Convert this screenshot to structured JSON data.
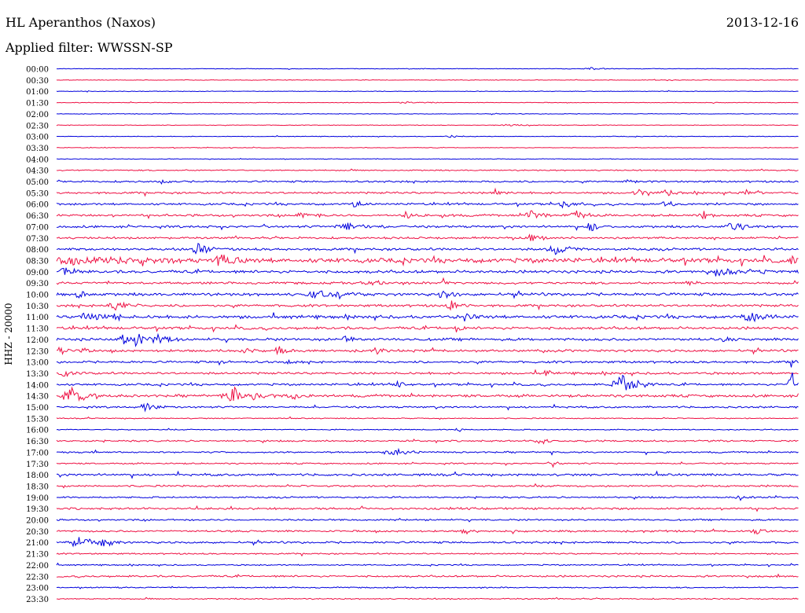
{
  "header": {
    "station": "HL Aperanthos (Naxos)",
    "filter": "Applied filter: WWSSN-SP",
    "date": "2013-12-16"
  },
  "chart_data": {
    "type": "line",
    "title": "HL Aperanthos (Naxos)",
    "subtitle": "Applied filter: WWSSN-SP",
    "ylabel": "HHZ - 20000",
    "rows": [
      "00:00",
      "00:30",
      "01:00",
      "01:30",
      "02:00",
      "02:30",
      "03:00",
      "03:30",
      "04:00",
      "04:30",
      "05:00",
      "05:30",
      "06:00",
      "06:30",
      "07:00",
      "07:30",
      "08:00",
      "08:30",
      "09:00",
      "09:30",
      "10:00",
      "10:30",
      "11:00",
      "11:30",
      "12:00",
      "12:30",
      "13:00",
      "13:30",
      "14:00",
      "14:30",
      "15:00",
      "15:30",
      "16:00",
      "16:30",
      "17:00",
      "17:30",
      "18:00",
      "18:30",
      "19:00",
      "19:30",
      "20:00",
      "20:30",
      "21:00",
      "21:30",
      "22:00",
      "22:30",
      "23:00",
      "23:30"
    ],
    "series_colors": [
      "#0000dd",
      "#ee1144"
    ],
    "noise_level": [
      0.3,
      0.3,
      0.3,
      0.3,
      0.3,
      0.3,
      0.3,
      0.3,
      0.3,
      0.6,
      0.9,
      1.0,
      1.0,
      1.1,
      1.1,
      1.0,
      1.2,
      2.2,
      1.4,
      1.1,
      1.4,
      1.2,
      1.5,
      1.3,
      1.3,
      1.2,
      1.1,
      1.1,
      1.0,
      1.3,
      0.9,
      0.5,
      0.5,
      0.8,
      0.8,
      0.7,
      1.1,
      0.9,
      0.8,
      1.0,
      0.8,
      0.9,
      1.0,
      0.7,
      0.6,
      0.9,
      0.6,
      0.6
    ],
    "events": [
      {
        "row": 0,
        "t": 0.72,
        "amp": 1.5,
        "dur": 0.03
      },
      {
        "row": 3,
        "t": 0.47,
        "amp": 1.2,
        "dur": 0.05
      },
      {
        "row": 5,
        "t": 0.61,
        "amp": 1.2,
        "dur": 0.04
      },
      {
        "row": 6,
        "t": 0.53,
        "amp": 1.5,
        "dur": 0.03
      },
      {
        "row": 10,
        "t": 0.14,
        "amp": 2.0,
        "dur": 0.02
      },
      {
        "row": 10,
        "t": 0.77,
        "amp": 2.0,
        "dur": 0.02
      },
      {
        "row": 11,
        "t": 0.59,
        "amp": 5.0,
        "dur": 0.015
      },
      {
        "row": 11,
        "t": 0.78,
        "amp": 6.0,
        "dur": 0.015
      },
      {
        "row": 11,
        "t": 0.82,
        "amp": 5.0,
        "dur": 0.015
      },
      {
        "row": 11,
        "t": 0.93,
        "amp": 4.5,
        "dur": 0.015
      },
      {
        "row": 12,
        "t": 0.4,
        "amp": 5.0,
        "dur": 0.02
      },
      {
        "row": 12,
        "t": 0.68,
        "amp": 5.0,
        "dur": 0.03
      },
      {
        "row": 12,
        "t": 0.82,
        "amp": 4.0,
        "dur": 0.02
      },
      {
        "row": 13,
        "t": 0.33,
        "amp": 5.0,
        "dur": 0.025
      },
      {
        "row": 13,
        "t": 0.47,
        "amp": 6.0,
        "dur": 0.015
      },
      {
        "row": 13,
        "t": 0.52,
        "amp": 4.0,
        "dur": 0.015
      },
      {
        "row": 13,
        "t": 0.64,
        "amp": 5.0,
        "dur": 0.03
      },
      {
        "row": 13,
        "t": 0.7,
        "amp": 7.0,
        "dur": 0.025
      },
      {
        "row": 13,
        "t": 0.87,
        "amp": 6.0,
        "dur": 0.02
      },
      {
        "row": 14,
        "t": 0.39,
        "amp": 8.0,
        "dur": 0.04
      },
      {
        "row": 14,
        "t": 0.72,
        "amp": 5.0,
        "dur": 0.02
      },
      {
        "row": 14,
        "t": 0.91,
        "amp": 6.0,
        "dur": 0.03
      },
      {
        "row": 15,
        "t": 0.64,
        "amp": 6.0,
        "dur": 0.025
      },
      {
        "row": 16,
        "t": 0.19,
        "amp": 7.0,
        "dur": 0.03
      },
      {
        "row": 16,
        "t": 0.67,
        "amp": 8.0,
        "dur": 0.03
      },
      {
        "row": 17,
        "t": 0.03,
        "amp": 4.0,
        "dur": 0.12
      },
      {
        "row": 17,
        "t": 0.22,
        "amp": 7.0,
        "dur": 0.03
      },
      {
        "row": 17,
        "t": 0.99,
        "amp": 7.0,
        "dur": 0.01
      },
      {
        "row": 18,
        "t": 0.01,
        "amp": 5.0,
        "dur": 0.02
      },
      {
        "row": 18,
        "t": 0.9,
        "amp": 6.0,
        "dur": 0.05
      },
      {
        "row": 19,
        "t": 0.42,
        "amp": 4.0,
        "dur": 0.03
      },
      {
        "row": 19,
        "t": 0.52,
        "amp": 6.0,
        "dur": 0.015
      },
      {
        "row": 19,
        "t": 0.85,
        "amp": 4.0,
        "dur": 0.02
      },
      {
        "row": 20,
        "t": 0.03,
        "amp": 7.0,
        "dur": 0.015
      },
      {
        "row": 20,
        "t": 0.35,
        "amp": 4.0,
        "dur": 0.06
      },
      {
        "row": 20,
        "t": 0.52,
        "amp": 8.0,
        "dur": 0.02
      },
      {
        "row": 21,
        "t": 0.08,
        "amp": 6.0,
        "dur": 0.03
      },
      {
        "row": 21,
        "t": 0.53,
        "amp": 7.0,
        "dur": 0.02
      },
      {
        "row": 22,
        "t": 0.04,
        "amp": 6.0,
        "dur": 0.03
      },
      {
        "row": 22,
        "t": 0.08,
        "amp": 7.0,
        "dur": 0.015
      },
      {
        "row": 22,
        "t": 0.55,
        "amp": 5.0,
        "dur": 0.02
      },
      {
        "row": 22,
        "t": 0.93,
        "amp": 6.0,
        "dur": 0.04
      },
      {
        "row": 23,
        "t": 0.54,
        "amp": 6.0,
        "dur": 0.01
      },
      {
        "row": 24,
        "t": 0.09,
        "amp": 6.0,
        "dur": 0.03
      },
      {
        "row": 24,
        "t": 0.11,
        "amp": 10.0,
        "dur": 0.02
      },
      {
        "row": 24,
        "t": 0.14,
        "amp": 7.0,
        "dur": 0.025
      },
      {
        "row": 24,
        "t": 0.39,
        "amp": 7.0,
        "dur": 0.015
      },
      {
        "row": 24,
        "t": 0.9,
        "amp": 5.0,
        "dur": 0.01
      },
      {
        "row": 25,
        "t": 0.005,
        "amp": 6.0,
        "dur": 0.01
      },
      {
        "row": 25,
        "t": 0.035,
        "amp": 6.0,
        "dur": 0.01
      },
      {
        "row": 25,
        "t": 0.25,
        "amp": 6.0,
        "dur": 0.015
      },
      {
        "row": 25,
        "t": 0.3,
        "amp": 5.0,
        "dur": 0.02
      },
      {
        "row": 25,
        "t": 0.43,
        "amp": 4.0,
        "dur": 0.02
      },
      {
        "row": 26,
        "t": 0.22,
        "amp": 5.0,
        "dur": 0.01
      },
      {
        "row": 26,
        "t": 0.31,
        "amp": 4.0,
        "dur": 0.01
      },
      {
        "row": 26,
        "t": 0.99,
        "amp": 5.0,
        "dur": 0.01
      },
      {
        "row": 27,
        "t": 0.01,
        "amp": 5.0,
        "dur": 0.02
      },
      {
        "row": 27,
        "t": 0.66,
        "amp": 7.0,
        "dur": 0.01
      },
      {
        "row": 28,
        "t": 0.46,
        "amp": 6.0,
        "dur": 0.015
      },
      {
        "row": 28,
        "t": 0.76,
        "amp": 14.0,
        "dur": 0.04
      },
      {
        "row": 28,
        "t": 0.99,
        "amp": 16.0,
        "dur": 0.015
      },
      {
        "row": 29,
        "t": 0.02,
        "amp": 9.0,
        "dur": 0.05
      },
      {
        "row": 29,
        "t": 0.24,
        "amp": 11.0,
        "dur": 0.05
      },
      {
        "row": 29,
        "t": 0.32,
        "amp": 6.0,
        "dur": 0.01
      },
      {
        "row": 30,
        "t": 0.12,
        "amp": 6.0,
        "dur": 0.03
      },
      {
        "row": 32,
        "t": 0.54,
        "amp": 5.0,
        "dur": 0.01
      },
      {
        "row": 33,
        "t": 0.65,
        "amp": 5.0,
        "dur": 0.02
      },
      {
        "row": 34,
        "t": 0.45,
        "amp": 7.0,
        "dur": 0.03
      },
      {
        "row": 35,
        "t": 0.67,
        "amp": 6.0,
        "dur": 0.01
      },
      {
        "row": 38,
        "t": 0.92,
        "amp": 4.0,
        "dur": 0.02
      },
      {
        "row": 41,
        "t": 0.55,
        "amp": 4.0,
        "dur": 0.02
      },
      {
        "row": 41,
        "t": 0.94,
        "amp": 6.0,
        "dur": 0.02
      },
      {
        "row": 42,
        "t": 0.03,
        "amp": 6.0,
        "dur": 0.04
      },
      {
        "row": 42,
        "t": 0.06,
        "amp": 8.0,
        "dur": 0.02
      }
    ]
  }
}
